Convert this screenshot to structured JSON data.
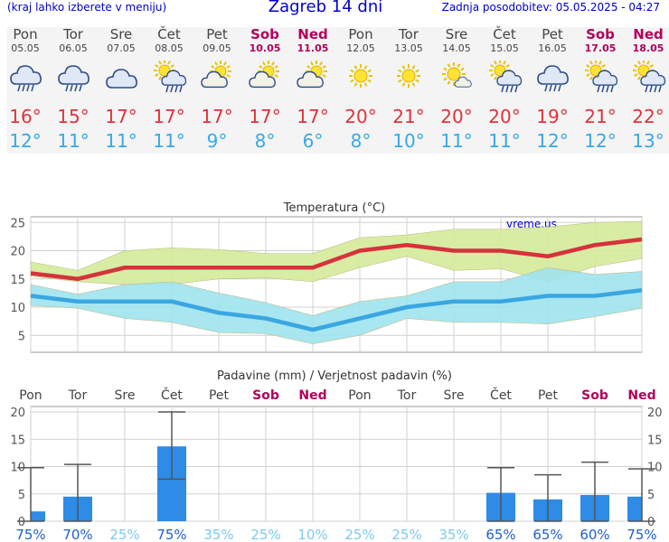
{
  "header": {
    "menu_note": "(kraj lahko izberete v meniju)",
    "title": "Zagreb 14 dni",
    "updated": "Zadnja posodobitev: 05.05.2025 - 04:27"
  },
  "forecast": [
    {
      "day": "Pon",
      "date": "05.05",
      "max": "16°",
      "min": "12°",
      "icon": "rain-cloud-icon",
      "weekend": false
    },
    {
      "day": "Tor",
      "date": "06.05",
      "max": "15°",
      "min": "11°",
      "icon": "rain-cloud-icon",
      "weekend": false
    },
    {
      "day": "Sre",
      "date": "07.05",
      "max": "17°",
      "min": "11°",
      "icon": "cloud-icon",
      "weekend": false
    },
    {
      "day": "Čet",
      "date": "08.05",
      "max": "17°",
      "min": "11°",
      "icon": "sun-rain-cloud-icon",
      "weekend": false
    },
    {
      "day": "Pet",
      "date": "09.05",
      "max": "17°",
      "min": "9°",
      "icon": "sun-cloud-icon",
      "weekend": false
    },
    {
      "day": "Sob",
      "date": "10.05",
      "max": "17°",
      "min": "8°",
      "icon": "sun-cloud-icon",
      "weekend": true
    },
    {
      "day": "Ned",
      "date": "11.05",
      "max": "17°",
      "min": "6°",
      "icon": "sun-cloud-icon",
      "weekend": true
    },
    {
      "day": "Pon",
      "date": "12.05",
      "max": "20°",
      "min": "8°",
      "icon": "sun-icon",
      "weekend": false
    },
    {
      "day": "Tor",
      "date": "13.05",
      "max": "21°",
      "min": "10°",
      "icon": "sun-icon",
      "weekend": false
    },
    {
      "day": "Sre",
      "date": "14.05",
      "max": "20°",
      "min": "11°",
      "icon": "sun-small-cloud-icon",
      "weekend": false
    },
    {
      "day": "Čet",
      "date": "15.05",
      "max": "20°",
      "min": "11°",
      "icon": "sun-rain-cloud-icon",
      "weekend": false
    },
    {
      "day": "Pet",
      "date": "16.05",
      "max": "19°",
      "min": "12°",
      "icon": "rain-cloud-icon",
      "weekend": false
    },
    {
      "day": "Sob",
      "date": "17.05",
      "max": "21°",
      "min": "12°",
      "icon": "sun-rain-cloud-icon",
      "weekend": true
    },
    {
      "day": "Ned",
      "date": "18.05",
      "max": "22°",
      "min": "13°",
      "icon": "sun-rain-cloud-icon",
      "weekend": true
    }
  ],
  "colors": {
    "max_line": "#d6323c",
    "min_line": "#3aa6e2",
    "max_band": "#d5ea9a",
    "min_band": "#9ee3ee",
    "bar": "#2e8be6",
    "weekday": "#444444",
    "weekend": "#b0005a",
    "prob_dark": "#1f5fd0",
    "prob_light": "#7ccaf0"
  },
  "chart_data": [
    {
      "type": "line",
      "title": "Temperatura (°C)",
      "watermark": "vreme.us",
      "ylim": [
        2,
        26
      ],
      "yticks": [
        5,
        10,
        15,
        20,
        25
      ],
      "x": [
        1,
        2,
        3,
        4,
        5,
        6,
        7,
        8,
        9,
        10,
        11,
        12,
        13,
        14
      ],
      "series": [
        {
          "name": "max",
          "values": [
            16,
            15,
            17,
            17,
            17,
            17,
            17,
            20,
            21,
            20,
            20,
            19,
            21,
            22
          ]
        },
        {
          "name": "min",
          "values": [
            12,
            11,
            11,
            11,
            9,
            8,
            6,
            8,
            10,
            11,
            11,
            12,
            12,
            13
          ]
        },
        {
          "name": "max_upper",
          "values": [
            18,
            16.5,
            20,
            20.5,
            20.2,
            19.5,
            19.5,
            22.3,
            22.8,
            23.8,
            23.8,
            24.2,
            25,
            25.2
          ]
        },
        {
          "name": "max_lower",
          "values": [
            15.5,
            14.5,
            14,
            14,
            15,
            15.2,
            14.5,
            17,
            19,
            16.5,
            16.8,
            14.5,
            17.2,
            18.6
          ]
        },
        {
          "name": "min_upper",
          "values": [
            14,
            12.3,
            14,
            14.5,
            12.5,
            10.8,
            8.5,
            11,
            12,
            14.5,
            14.5,
            17,
            15.8,
            16.3
          ]
        },
        {
          "name": "min_lower",
          "values": [
            10.3,
            9.8,
            8,
            7.3,
            5.5,
            5.3,
            3.5,
            5,
            8,
            7.3,
            7.3,
            7,
            8.3,
            9.8
          ]
        }
      ],
      "grid": true
    },
    {
      "type": "bar",
      "title": "Padavine (mm) / Verjetnost padavin (%)",
      "ylim": [
        0,
        21
      ],
      "yticks": [
        0,
        5,
        10,
        15,
        20
      ],
      "categories": [
        "Pon",
        "Tor",
        "Sre",
        "Čet",
        "Pet",
        "Sob",
        "Ned",
        "Pon",
        "Tor",
        "Sre",
        "Čet",
        "Pet",
        "Sob",
        "Ned"
      ],
      "weekend": [
        false,
        false,
        false,
        false,
        false,
        true,
        true,
        false,
        false,
        false,
        false,
        false,
        true,
        true
      ],
      "values": [
        1.8,
        4.5,
        0,
        13.7,
        0,
        0,
        0,
        0,
        0,
        0,
        5.2,
        4,
        4.8,
        4.5
      ],
      "error_high": [
        9.8,
        10.4,
        0,
        20,
        0,
        0,
        0,
        0,
        0,
        0,
        9.8,
        8.5,
        10.8,
        9.6
      ],
      "error_low": [
        0,
        0,
        0,
        7.7,
        0,
        0,
        0,
        0,
        0,
        0,
        0,
        0,
        0,
        0
      ],
      "probabilities": [
        "75%",
        "70%",
        "25%",
        "75%",
        "35%",
        "25%",
        "10%",
        "25%",
        "25%",
        "35%",
        "65%",
        "65%",
        "60%",
        "75%"
      ],
      "probability_high": [
        true,
        true,
        false,
        true,
        false,
        false,
        false,
        false,
        false,
        false,
        true,
        true,
        true,
        true
      ],
      "grid": true
    }
  ]
}
